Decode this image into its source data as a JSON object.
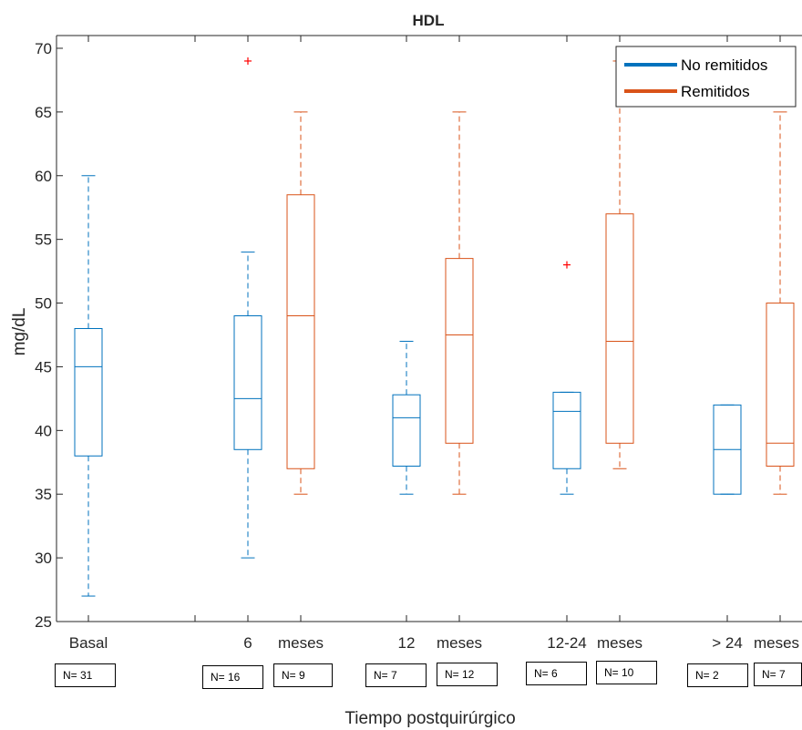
{
  "chart_data": {
    "type": "box",
    "title": "HDL",
    "xlabel": "Tiempo postquirúrgico",
    "ylabel": "mg/dL",
    "ylim": [
      25,
      71
    ],
    "yticks": [
      25,
      30,
      35,
      40,
      45,
      50,
      55,
      60,
      65,
      70
    ],
    "grid": false,
    "legend": {
      "placement": "top-right",
      "entries": [
        {
          "label": "No remitidos",
          "color": "#0072BD"
        },
        {
          "label": "Remitidos",
          "color": "#D95319"
        }
      ]
    },
    "colors": {
      "no_remitidos": "#0072BD",
      "remitidos": "#D95319",
      "outlier": "#FF0000"
    },
    "x_tick_labels": [
      "Basal",
      "6",
      "meses",
      "12",
      "meses",
      "12-24",
      "meses",
      "> 24",
      "meses"
    ],
    "boxes": [
      {
        "series": "No remitidos",
        "whisker_low": 27,
        "q1": 38,
        "median": 45,
        "q3": 48,
        "whisker_high": 60,
        "outliers": [],
        "n_label": "N= 31"
      },
      {
        "series": "No remitidos",
        "whisker_low": 30,
        "q1": 38.5,
        "median": 42.5,
        "q3": 49,
        "whisker_high": 54,
        "outliers": [
          69
        ],
        "n_label": "N= 16"
      },
      {
        "series": "Remitidos",
        "whisker_low": 35,
        "q1": 37,
        "median": 49,
        "q3": 58.5,
        "whisker_high": 65,
        "outliers": [],
        "n_label": "N= 9"
      },
      {
        "series": "No remitidos",
        "whisker_low": 35,
        "q1": 37.2,
        "median": 41,
        "q3": 42.8,
        "whisker_high": 47,
        "outliers": [],
        "n_label": "N= 7"
      },
      {
        "series": "Remitidos",
        "whisker_low": 35,
        "q1": 39,
        "median": 47.5,
        "q3": 53.5,
        "whisker_high": 65,
        "outliers": [],
        "n_label": "N= 12"
      },
      {
        "series": "No remitidos",
        "whisker_low": 35,
        "q1": 37,
        "median": 41.5,
        "q3": 43,
        "whisker_high": 43,
        "outliers": [
          53
        ],
        "n_label": "N= 6"
      },
      {
        "series": "Remitidos",
        "whisker_low": 37,
        "q1": 39,
        "median": 47,
        "q3": 57,
        "whisker_high": 69,
        "outliers": [],
        "n_label": "N= 10"
      },
      {
        "series": "No remitidos",
        "whisker_low": 35,
        "q1": 35,
        "median": 38.5,
        "q3": 42,
        "whisker_high": 42,
        "outliers": [],
        "n_label": "N= 2"
      },
      {
        "series": "Remitidos",
        "whisker_low": 35,
        "q1": 37.2,
        "median": 39,
        "q3": 50,
        "whisker_high": 65,
        "outliers": [],
        "n_label": "N= 7"
      }
    ]
  }
}
